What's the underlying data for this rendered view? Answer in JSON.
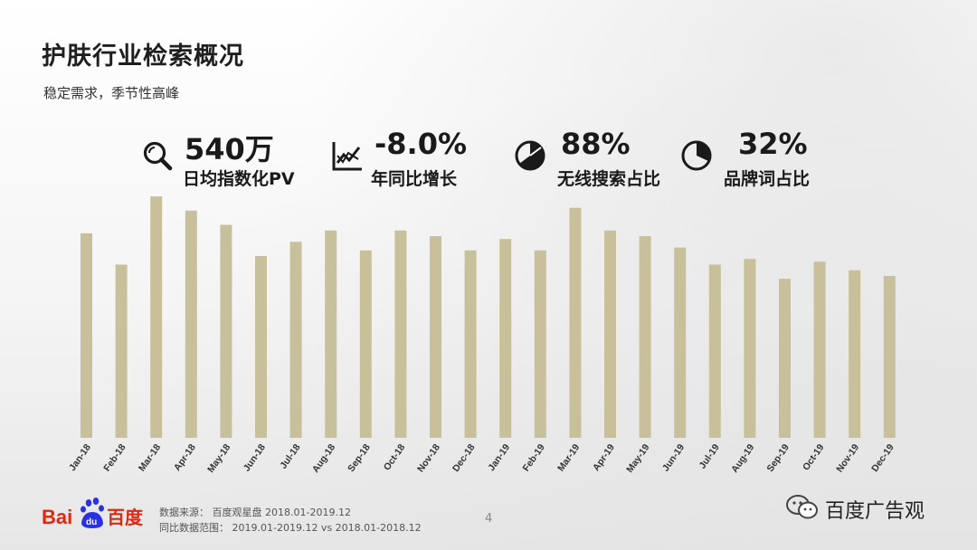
{
  "header": {
    "title": "护肤行业检索概况",
    "subtitle": "稳定需求，季节性高峰"
  },
  "stats": [
    {
      "icon": "search-icon",
      "value": "540万",
      "label": "日均指数化PV"
    },
    {
      "icon": "line-chart-icon",
      "value": "-8.0%",
      "label": "年同比增长"
    },
    {
      "icon": "pie-chart-icon",
      "value": "88%",
      "label": "无线搜索占比"
    },
    {
      "icon": "pie-chart-icon",
      "value": "32%",
      "label": "品牌词占比"
    }
  ],
  "chart_data": {
    "type": "bar",
    "categories": [
      "Jan-18",
      "Feb-18",
      "Mar-18",
      "Apr-18",
      "May-18",
      "Jun-18",
      "Jul-18",
      "Aug-18",
      "Sep-18",
      "Oct-18",
      "Nov-18",
      "Dec-18",
      "Jan-19",
      "Feb-19",
      "Mar-19",
      "Apr-19",
      "May-19",
      "Jun-19",
      "Jul-19",
      "Aug-19",
      "Sep-19",
      "Oct-19",
      "Nov-19",
      "Dec-19"
    ],
    "values": [
      72,
      61,
      85,
      80,
      75,
      64,
      69,
      73,
      66,
      73,
      71,
      66,
      70,
      66,
      81,
      73,
      71,
      67,
      61,
      63,
      56,
      62,
      59,
      57
    ],
    "ylim": [
      0,
      100
    ],
    "bar_color": "#c8c09a",
    "grid": false,
    "legend": "none"
  },
  "footer": {
    "logo_text_left": "Bai",
    "logo_text_mid": "du",
    "logo_text_right": "百度",
    "source_line1": "数据来源：  百度观星盘 2018.01-2019.12",
    "source_line2": "同比数据范围：  2019.01-2019.12 vs 2018.01-2018.12",
    "page_number": "4",
    "wechat_label": "百度广告观"
  },
  "colors": {
    "bar": "#c8c09a",
    "baidu_red": "#de2910",
    "baidu_blue": "#2932e1",
    "text": "#1a1a1a"
  }
}
